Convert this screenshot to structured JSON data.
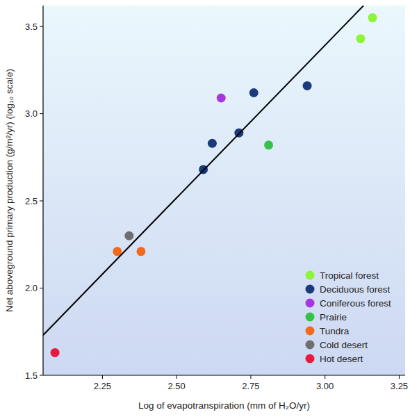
{
  "chart_data": {
    "type": "scatter",
    "x_label": "Log of evapotranspiration (mm of H₂O/yr)",
    "y_label": "Net aboveground primary production (g/m²/yr) (log₁₀ scale)",
    "xlim": [
      2.05,
      3.27
    ],
    "ylim": [
      1.5,
      3.62
    ],
    "xticks": [
      {
        "value": 2.25,
        "label": "2.25"
      },
      {
        "value": 2.5,
        "label": "2.50"
      },
      {
        "value": 2.75,
        "label": "2.75"
      },
      {
        "value": 3.0,
        "label": "3.00"
      },
      {
        "value": 3.25,
        "label": "3.25"
      }
    ],
    "yticks": [
      {
        "value": 1.5,
        "label": "1.5"
      },
      {
        "value": 2.0,
        "label": "2.0"
      },
      {
        "value": 2.5,
        "label": "2.5"
      },
      {
        "value": 3.0,
        "label": "3.0"
      },
      {
        "value": 3.5,
        "label": "3.5"
      }
    ],
    "legend": "bottom-right",
    "series": [
      {
        "name": "Tropical forest",
        "color": "#8ef33a",
        "marker": "circle",
        "x": [
          3.12,
          3.16
        ],
        "values": [
          3.43,
          3.55
        ]
      },
      {
        "name": "Deciduous forest",
        "color": "#1a3a7a",
        "marker": "circle",
        "x": [
          2.59,
          2.62,
          2.71,
          2.76,
          2.94
        ],
        "values": [
          2.68,
          2.83,
          2.89,
          3.12,
          3.16
        ]
      },
      {
        "name": "Coniferous forest",
        "color": "#a536e0",
        "marker": "circle",
        "x": [
          2.65
        ],
        "values": [
          3.09
        ]
      },
      {
        "name": "Prairie",
        "color": "#36c24a",
        "marker": "circle",
        "x": [
          2.81
        ],
        "values": [
          2.82
        ]
      },
      {
        "name": "Tundra",
        "color": "#f26b1d",
        "marker": "circle",
        "x": [
          2.3,
          2.38
        ],
        "values": [
          2.21,
          2.21
        ]
      },
      {
        "name": "Cold desert",
        "color": "#6e6e6e",
        "marker": "circle",
        "x": [
          2.34
        ],
        "values": [
          2.3
        ]
      },
      {
        "name": "Hot desert",
        "color": "#e8193c",
        "marker": "circle",
        "x": [
          2.09
        ],
        "values": [
          1.63
        ]
      },
      {
        "type": "line",
        "color": "#000000",
        "line_style": "solid",
        "x": [
          2.05,
          3.13
        ],
        "values": [
          1.73,
          3.62
        ]
      }
    ]
  }
}
